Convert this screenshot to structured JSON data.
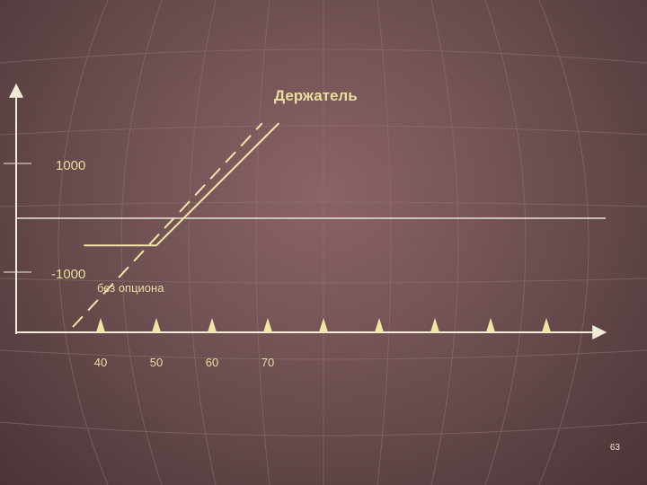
{
  "slide": {
    "page_number": "63"
  },
  "chart_data": {
    "type": "line",
    "title": "Держатель",
    "y_tick_labels": [
      "1000",
      "-1000"
    ],
    "x_tick_labels": [
      "40",
      "50",
      "60",
      "70"
    ],
    "x_ticks": [
      40,
      50,
      60,
      70,
      80,
      90,
      100,
      110,
      120
    ],
    "annotation": "без опциона",
    "y_values": {
      "upper": 1000,
      "zero": 0,
      "lower": -1000
    },
    "series": [
      {
        "style": "solid",
        "points": [
          [
            37,
            -500
          ],
          [
            50,
            -500
          ],
          [
            72,
            1750
          ]
        ]
      },
      {
        "style": "dashed",
        "points": [
          [
            35,
            -2000
          ],
          [
            69,
            1750
          ]
        ]
      }
    ],
    "colors": {
      "axis": "#f0ecd8",
      "line": "#f0e6a8",
      "text": "#e8de9e"
    }
  }
}
